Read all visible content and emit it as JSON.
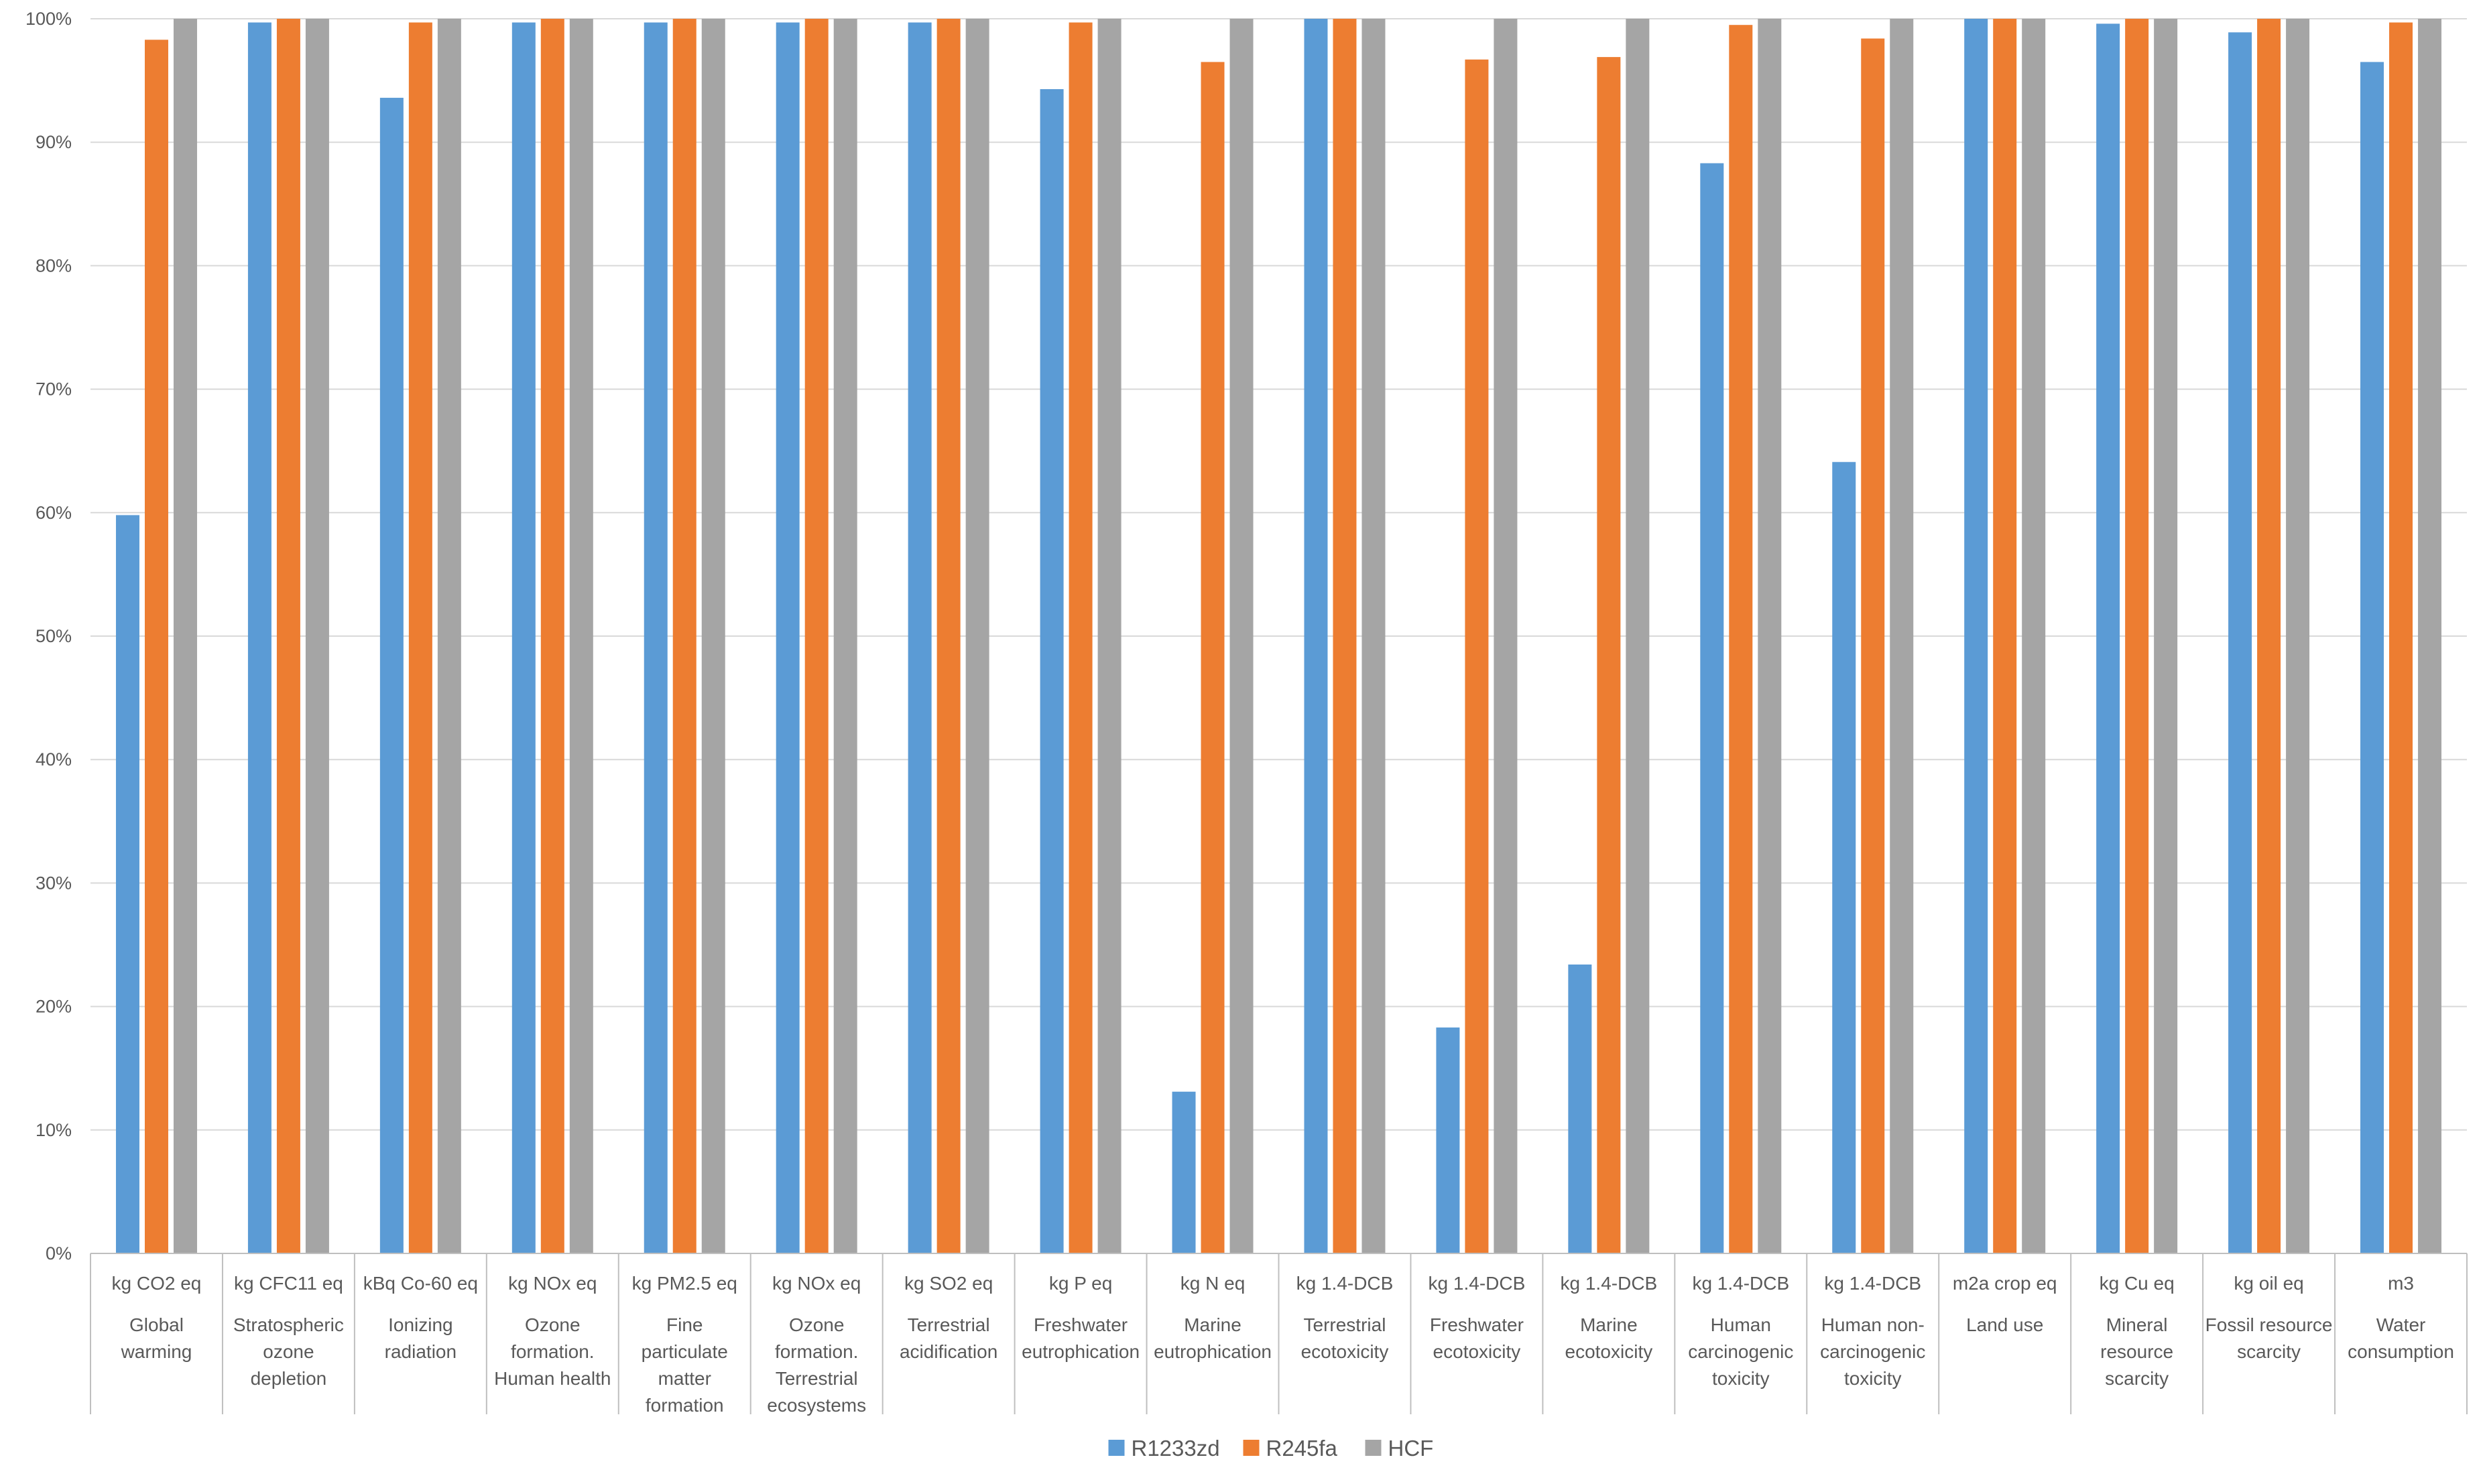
{
  "chart_data": {
    "type": "bar",
    "y_unit": "percent",
    "ylim": [
      0,
      100
    ],
    "yticks": [
      0,
      10,
      20,
      30,
      40,
      50,
      60,
      70,
      80,
      90,
      100
    ],
    "ytick_labels": [
      "0%",
      "10%",
      "20%",
      "30%",
      "40%",
      "50%",
      "60%",
      "70%",
      "80%",
      "90%",
      "100%"
    ],
    "grid": true,
    "legend_position": "bottom-center",
    "categories": [
      {
        "unit": "kg CO2 eq",
        "name": [
          "Global",
          "warming"
        ]
      },
      {
        "unit": "kg CFC11 eq",
        "name": [
          "Stratospheric",
          "ozone",
          "depletion"
        ]
      },
      {
        "unit": "kBq Co-60 eq",
        "name": [
          "Ionizing",
          "radiation"
        ]
      },
      {
        "unit": "kg NOx eq",
        "name": [
          "Ozone",
          "formation.",
          "Human health"
        ]
      },
      {
        "unit": "kg PM2.5 eq",
        "name": [
          "Fine",
          "particulate",
          "matter",
          "formation"
        ]
      },
      {
        "unit": "kg NOx eq",
        "name": [
          "Ozone",
          "formation.",
          "Terrestrial",
          "ecosystems"
        ]
      },
      {
        "unit": "kg SO2 eq",
        "name": [
          "Terrestrial",
          "acidification"
        ]
      },
      {
        "unit": "kg P eq",
        "name": [
          "Freshwater",
          "eutrophication"
        ]
      },
      {
        "unit": "kg N eq",
        "name": [
          "Marine",
          "eutrophication"
        ]
      },
      {
        "unit": "kg 1.4-DCB",
        "name": [
          "Terrestrial",
          "ecotoxicity"
        ]
      },
      {
        "unit": "kg 1.4-DCB",
        "name": [
          "Freshwater",
          "ecotoxicity"
        ]
      },
      {
        "unit": "kg 1.4-DCB",
        "name": [
          "Marine",
          "ecotoxicity"
        ]
      },
      {
        "unit": "kg 1.4-DCB",
        "name": [
          "Human",
          "carcinogenic",
          "toxicity"
        ]
      },
      {
        "unit": "kg 1.4-DCB",
        "name": [
          "Human non-",
          "carcinogenic",
          "toxicity"
        ]
      },
      {
        "unit": "m2a crop eq",
        "name": [
          "Land use"
        ]
      },
      {
        "unit": "kg Cu eq",
        "name": [
          "Mineral",
          "resource",
          "scarcity"
        ]
      },
      {
        "unit": "kg oil eq",
        "name": [
          "Fossil resource",
          "scarcity"
        ]
      },
      {
        "unit": "m3",
        "name": [
          "Water",
          "consumption"
        ]
      }
    ],
    "series": [
      {
        "name": "R1233zd",
        "color": "#5b9bd5",
        "values": [
          59.8,
          99.7,
          93.6,
          99.7,
          99.7,
          99.7,
          99.7,
          94.3,
          13.1,
          100.0,
          18.3,
          23.4,
          88.3,
          64.1,
          100.0,
          99.6,
          98.9,
          96.5
        ]
      },
      {
        "name": "R245fa",
        "color": "#ed7d31",
        "values": [
          98.3,
          100.0,
          99.7,
          100.0,
          100.0,
          100.0,
          100.0,
          99.7,
          96.5,
          100.0,
          96.7,
          96.9,
          99.5,
          98.4,
          100.0,
          100.0,
          100.0,
          99.7
        ]
      },
      {
        "name": "HCF",
        "color": "#a5a5a5",
        "values": [
          100,
          100,
          100,
          100,
          100,
          100,
          100,
          100,
          100,
          100,
          100,
          100,
          100,
          100,
          100,
          100,
          100,
          100
        ]
      }
    ]
  }
}
